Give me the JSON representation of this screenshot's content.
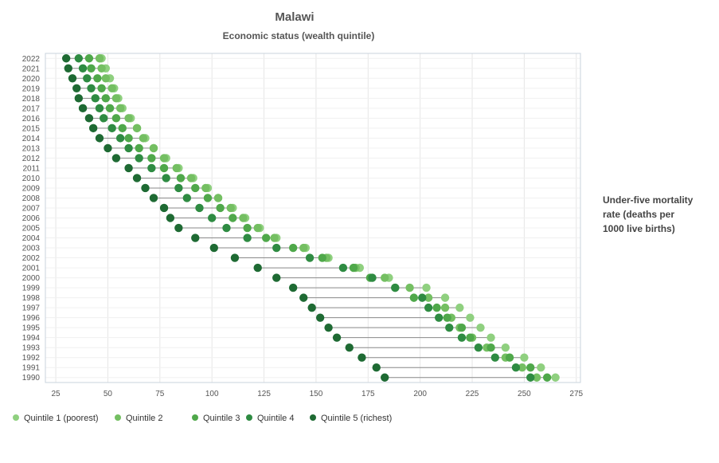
{
  "chart_data": {
    "type": "scatter",
    "title": "Malawi",
    "subtitle": "Economic status (wealth quintile)",
    "side_label": [
      "Under-five mortality",
      "rate (deaths per",
      "1000 live births)"
    ],
    "x_ticks": [
      25,
      50,
      75,
      100,
      125,
      150,
      175,
      200,
      225,
      250,
      275
    ],
    "xlim": [
      20,
      277
    ],
    "grid": true,
    "legend_position": "bottom-left",
    "categories": [
      "2022",
      "2021",
      "2020",
      "2019",
      "2018",
      "2017",
      "2016",
      "2015",
      "2014",
      "2013",
      "2012",
      "2011",
      "2010",
      "2009",
      "2008",
      "2007",
      "2006",
      "2005",
      "2004",
      "2003",
      "2002",
      "2001",
      "2000",
      "1999",
      "1998",
      "1997",
      "1996",
      "1995",
      "1994",
      "1993",
      "1992",
      "1991",
      "1990"
    ],
    "series": [
      {
        "name": "Quintile 1 (poorest)",
        "color": "#8fd07f",
        "values": [
          47,
          49,
          51,
          53,
          55,
          57,
          61,
          64,
          68,
          72,
          78,
          84,
          91,
          98,
          103,
          110,
          116,
          123,
          131,
          145,
          156,
          171,
          185,
          203,
          212,
          219,
          224,
          229,
          234,
          241,
          250,
          258,
          265
        ]
      },
      {
        "name": "Quintile 2",
        "color": "#74bf62",
        "values": [
          46,
          47,
          49,
          52,
          54,
          56,
          60,
          64,
          67,
          72,
          77,
          83,
          90,
          97,
          103,
          109,
          115,
          122,
          130,
          144,
          155,
          169,
          183,
          195,
          204,
          212,
          215,
          219,
          225,
          232,
          241,
          249,
          256
        ]
      },
      {
        "name": "Quintile 3",
        "color": "#4fa84a",
        "values": [
          41,
          42,
          45,
          47,
          49,
          51,
          54,
          57,
          60,
          65,
          71,
          77,
          85,
          92,
          98,
          104,
          110,
          117,
          126,
          139,
          153,
          168,
          176,
          188,
          197,
          208,
          213,
          220,
          224,
          234,
          243,
          253,
          261
        ]
      },
      {
        "name": "Quintile 4",
        "color": "#2e8b42",
        "values": [
          36,
          38,
          40,
          42,
          44,
          46,
          48,
          52,
          56,
          60,
          65,
          71,
          78,
          84,
          88,
          94,
          100,
          107,
          117,
          131,
          147,
          163,
          177,
          188,
          201,
          204,
          209,
          214,
          220,
          228,
          236,
          246,
          253
        ]
      },
      {
        "name": "Quintile 5 (richest)",
        "color": "#1e6a33",
        "values": [
          30,
          31,
          33,
          35,
          36,
          38,
          41,
          43,
          46,
          50,
          54,
          60,
          64,
          68,
          72,
          77,
          80,
          84,
          92,
          101,
          111,
          122,
          131,
          139,
          144,
          148,
          152,
          156,
          160,
          166,
          172,
          179,
          183
        ]
      }
    ]
  }
}
